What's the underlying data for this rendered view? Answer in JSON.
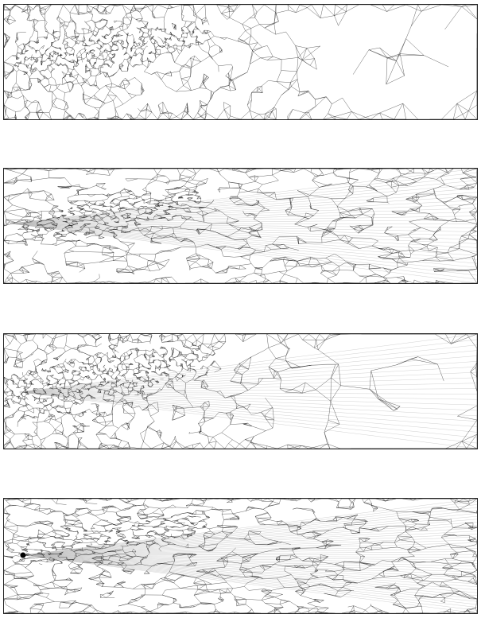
{
  "figure": {
    "panels": [
      {
        "id": "panel-1",
        "mesh": "uniform-adaptive",
        "plume_end": "right-tip",
        "outer": "coarse"
      },
      {
        "id": "panel-2",
        "mesh": "stretched",
        "plume_end": "right-tip",
        "outer": "fan"
      },
      {
        "id": "panel-3",
        "mesh": "adaptive-fan",
        "plume_end": "left-source",
        "outer": "coarse"
      },
      {
        "id": "panel-4",
        "mesh": "stretched-fine",
        "plume_end": "left-source-dot",
        "outer": "fan"
      }
    ],
    "colors": {
      "line": "#222222",
      "background": "#ffffff"
    }
  }
}
